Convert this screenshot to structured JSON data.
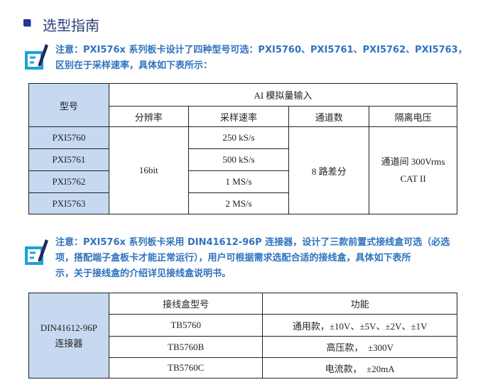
{
  "section_title": "选型指南",
  "note1": [
    "注意：PXI576x 系列板卡设计了四种型号可选：PXI5760、PXI5761、PXI5762、PXI5763，",
    "区别在于采样速率，具体如下表所示："
  ],
  "table1": {
    "model_header": "型号",
    "group_header": "AI 模拟量输入",
    "columns": [
      "分辨率",
      "采样速率",
      "通道数",
      "隔离电压"
    ],
    "models": [
      "PXI5760",
      "PXI5761",
      "PXI5762",
      "PXI5763"
    ],
    "resolution": "16bit",
    "rates": [
      "250 kS/s",
      "500 kS/s",
      "1 MS/s",
      "2 MS/s"
    ],
    "channels": "8 路差分",
    "isolation": [
      "通道间 300Vrms",
      "CAT II"
    ]
  },
  "note2": [
    "注意：PXI576x 系列板卡采用 DIN41612-96P 连接器，设计了三款前置式接线盒可选（必选",
    "项，搭配端子盒板卡才能正常运行），用户可根据需求选配合适的接线盒，具体如下表所",
    "示，关于接线盒的介绍详见接线盒说明书。"
  ],
  "table2": {
    "connector": [
      "DIN41612-96P",
      "连接器"
    ],
    "columns": [
      "接线盒型号",
      "功能"
    ],
    "rows": [
      [
        "TB5760",
        "通用款，±10V、±5V、±2V、±1V"
      ],
      [
        "TB5760B",
        "高压款，  ±300V"
      ],
      [
        "TB5760C",
        "电流款，  ±20mA"
      ]
    ]
  },
  "colors": {
    "note": "#2f73be",
    "header_fill": "#c6d9f0",
    "icon": "#1aa3d6"
  }
}
